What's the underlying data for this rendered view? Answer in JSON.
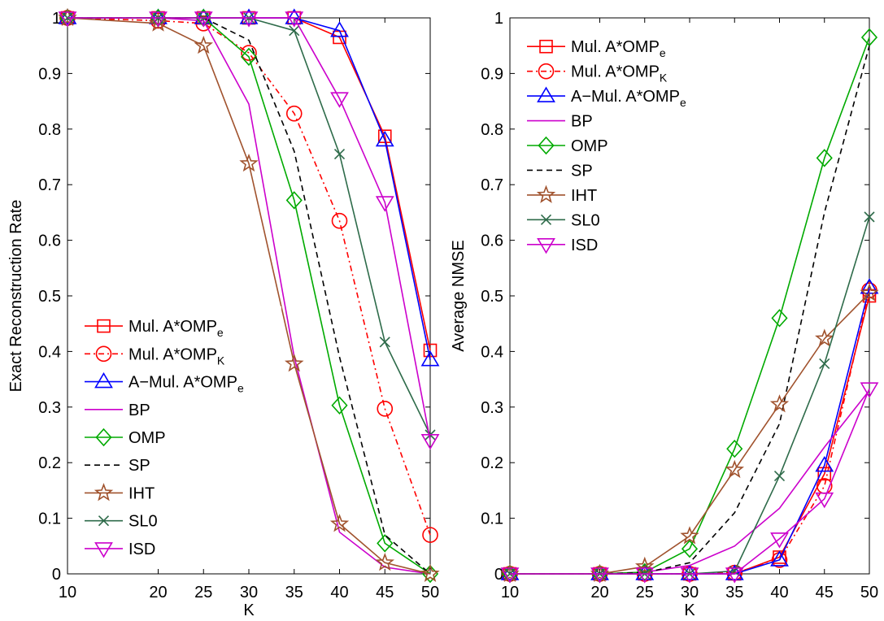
{
  "chart_data": [
    {
      "type": "line",
      "title": "",
      "xlabel": "K",
      "ylabel": "Exact Reconstruction Rate",
      "xlim": [
        10,
        50
      ],
      "ylim": [
        0,
        1
      ],
      "x": [
        10,
        20,
        25,
        30,
        35,
        40,
        45,
        50
      ],
      "x_ticks": [
        "10",
        "20",
        "25",
        "30",
        "35",
        "40",
        "45",
        "50"
      ],
      "y_ticks": [
        "0",
        "0.1",
        "0.2",
        "0.3",
        "0.4",
        "0.5",
        "0.6",
        "0.7",
        "0.8",
        "0.9",
        "1"
      ],
      "grid": false,
      "legend_position": "lower-left",
      "series": [
        {
          "name": "Mul. A*OMP",
          "sub": "e",
          "color": "#ff0000",
          "dash": "solid",
          "marker": "square",
          "values": [
            1.0,
            1.0,
            1.0,
            1.0,
            1.0,
            0.965,
            0.787,
            0.402
          ]
        },
        {
          "name": "Mul. A*OMP",
          "sub": "K",
          "color": "#ff0000",
          "dash": "dashdot",
          "marker": "circle",
          "values": [
            1.0,
            0.995,
            0.99,
            0.937,
            0.828,
            0.635,
            0.297,
            0.07
          ]
        },
        {
          "name": "A−Mul. A*OMP",
          "sub": "e",
          "color": "#0000ff",
          "dash": "solid",
          "marker": "triangle-up",
          "values": [
            1.0,
            1.0,
            1.0,
            1.0,
            1.0,
            0.977,
            0.78,
            0.385
          ]
        },
        {
          "name": "BP",
          "sub": "",
          "color": "#cc00cc",
          "dash": "solid",
          "marker": "none",
          "values": [
            1.0,
            1.0,
            0.995,
            0.845,
            0.39,
            0.075,
            0.012,
            0.0
          ]
        },
        {
          "name": "OMP",
          "sub": "",
          "color": "#00aa00",
          "dash": "solid",
          "marker": "diamond",
          "values": [
            1.0,
            1.0,
            1.0,
            0.93,
            0.672,
            0.303,
            0.055,
            0.0
          ]
        },
        {
          "name": "SP",
          "sub": "",
          "color": "#000000",
          "dash": "dashed",
          "marker": "none",
          "values": [
            1.0,
            1.0,
            1.0,
            0.96,
            0.76,
            0.39,
            0.07,
            0.0
          ]
        },
        {
          "name": "IHT",
          "sub": "",
          "color": "#a0522d",
          "dash": "solid",
          "marker": "star",
          "values": [
            1.0,
            0.99,
            0.95,
            0.738,
            0.378,
            0.09,
            0.02,
            0.0
          ]
        },
        {
          "name": "SL0",
          "sub": "",
          "color": "#2e6b4a",
          "dash": "solid",
          "marker": "x",
          "values": [
            1.0,
            1.0,
            1.0,
            1.0,
            0.977,
            0.755,
            0.417,
            0.25
          ]
        },
        {
          "name": "ISD",
          "sub": "",
          "color": "#cc00cc",
          "dash": "solid",
          "marker": "triangle-down",
          "values": [
            1.0,
            1.0,
            1.0,
            1.0,
            1.0,
            0.855,
            0.668,
            0.24
          ]
        }
      ]
    },
    {
      "type": "line",
      "title": "",
      "xlabel": "K",
      "ylabel": "Average NMSE",
      "xlim": [
        10,
        50
      ],
      "ylim": [
        0,
        1
      ],
      "x": [
        10,
        20,
        25,
        30,
        35,
        40,
        45,
        50
      ],
      "x_ticks": [
        "10",
        "20",
        "25",
        "30",
        "35",
        "40",
        "45",
        "50"
      ],
      "y_ticks": [
        "0",
        "0.1",
        "0.2",
        "0.3",
        "0.4",
        "0.5",
        "0.6",
        "0.7",
        "0.8",
        "0.9",
        "1"
      ],
      "grid": false,
      "legend_position": "upper-left",
      "series": [
        {
          "name": "Mul. A*OMP",
          "sub": "e",
          "color": "#ff0000",
          "dash": "solid",
          "marker": "square",
          "values": [
            0.0,
            0.0,
            0.0,
            0.0,
            0.0,
            0.03,
            0.18,
            0.5
          ]
        },
        {
          "name": "Mul. A*OMP",
          "sub": "K",
          "color": "#ff0000",
          "dash": "dashdot",
          "marker": "circle",
          "values": [
            0.0,
            0.0,
            0.0,
            0.0,
            0.002,
            0.025,
            0.158,
            0.51
          ]
        },
        {
          "name": "A−Mul. A*OMP",
          "sub": "e",
          "color": "#0000ff",
          "dash": "solid",
          "marker": "triangle-up",
          "values": [
            0.0,
            0.0,
            0.0,
            0.0,
            0.0,
            0.025,
            0.195,
            0.515
          ]
        },
        {
          "name": "BP",
          "sub": "",
          "color": "#cc00cc",
          "dash": "solid",
          "marker": "none",
          "values": [
            0.0,
            0.0,
            0.003,
            0.015,
            0.05,
            0.118,
            0.228,
            0.33
          ]
        },
        {
          "name": "OMP",
          "sub": "",
          "color": "#00aa00",
          "dash": "solid",
          "marker": "diamond",
          "values": [
            0.0,
            0.0,
            0.003,
            0.045,
            0.225,
            0.46,
            0.748,
            0.965
          ]
        },
        {
          "name": "SP",
          "sub": "",
          "color": "#000000",
          "dash": "dashed",
          "marker": "none",
          "values": [
            0.0,
            0.0,
            0.002,
            0.02,
            0.11,
            0.27,
            0.65,
            0.95
          ]
        },
        {
          "name": "IHT",
          "sub": "",
          "color": "#a0522d",
          "dash": "solid",
          "marker": "star",
          "values": [
            0.0,
            0.0,
            0.013,
            0.068,
            0.187,
            0.305,
            0.423,
            0.505
          ]
        },
        {
          "name": "SL0",
          "sub": "",
          "color": "#2e6b4a",
          "dash": "solid",
          "marker": "x",
          "values": [
            0.0,
            0.0,
            0.0,
            0.0,
            0.005,
            0.176,
            0.378,
            0.642
          ]
        },
        {
          "name": "ISD",
          "sub": "",
          "color": "#cc00cc",
          "dash": "solid",
          "marker": "triangle-down",
          "values": [
            0.0,
            0.0,
            0.0,
            0.0,
            0.0,
            0.063,
            0.135,
            0.333
          ]
        }
      ]
    }
  ]
}
